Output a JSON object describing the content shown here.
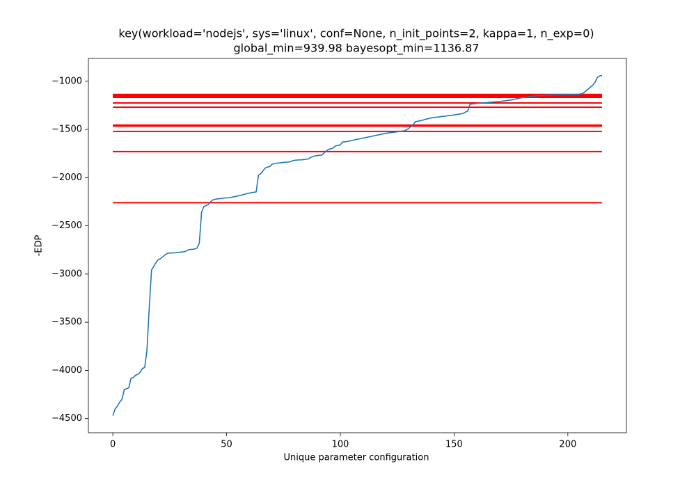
{
  "chart_data": {
    "type": "line",
    "title": "key(workload='nodejs', sys='linux', conf=None, n_init_points=2, kappa=1, n_exp=0)",
    "subtitle": "global_min=939.98 bayesopt_min=1136.87",
    "xlabel": "Unique parameter configuration",
    "ylabel": "-EDP",
    "color": "#1f77b4",
    "x": [
      0,
      1,
      2,
      3,
      4,
      5,
      6,
      7,
      8,
      9,
      10,
      11,
      12,
      13,
      14,
      15,
      16,
      17,
      18,
      19,
      20,
      21,
      22,
      23,
      24,
      25,
      26,
      27,
      28,
      29,
      30,
      31,
      32,
      33,
      34,
      35,
      36,
      37,
      38,
      39,
      40,
      41,
      42,
      43,
      44,
      45,
      46,
      47,
      48,
      49,
      50,
      51,
      52,
      53,
      54,
      55,
      56,
      57,
      58,
      59,
      60,
      61,
      62,
      63,
      64,
      65,
      66,
      67,
      68,
      69,
      70,
      71,
      72,
      73,
      74,
      75,
      76,
      77,
      78,
      79,
      80,
      81,
      82,
      83,
      84,
      85,
      86,
      87,
      88,
      89,
      90,
      91,
      92,
      93,
      94,
      95,
      96,
      97,
      98,
      99,
      100,
      101,
      102,
      103,
      104,
      105,
      106,
      107,
      108,
      109,
      110,
      111,
      112,
      113,
      114,
      115,
      116,
      117,
      118,
      119,
      120,
      121,
      122,
      123,
      124,
      125,
      126,
      127,
      128,
      129,
      130,
      131,
      132,
      133,
      134,
      135,
      136,
      137,
      138,
      139,
      140,
      141,
      142,
      143,
      144,
      145,
      146,
      147,
      148,
      149,
      150,
      151,
      152,
      153,
      154,
      155,
      156,
      157,
      158,
      159,
      160,
      161,
      162,
      163,
      164,
      165,
      166,
      167,
      168,
      169,
      170,
      171,
      172,
      173,
      174,
      175,
      176,
      177,
      178,
      179,
      180,
      181,
      182,
      183,
      184,
      185,
      186,
      187,
      188,
      189,
      190,
      191,
      192,
      193,
      194,
      195,
      196,
      197,
      198,
      199,
      200,
      201,
      202,
      203,
      204,
      205,
      206,
      207,
      208,
      209,
      210,
      211,
      212,
      213,
      214,
      215
    ],
    "values": [
      -4470,
      -4400,
      -4370,
      -4330,
      -4300,
      -4200,
      -4190,
      -4180,
      -4080,
      -4075,
      -4050,
      -4040,
      -4020,
      -3980,
      -3970,
      -3790,
      -3350,
      -2960,
      -2920,
      -2880,
      -2850,
      -2840,
      -2820,
      -2800,
      -2785,
      -2782,
      -2781,
      -2780,
      -2778,
      -2775,
      -2772,
      -2770,
      -2765,
      -2750,
      -2745,
      -2744,
      -2740,
      -2730,
      -2680,
      -2360,
      -2300,
      -2290,
      -2280,
      -2250,
      -2230,
      -2225,
      -2220,
      -2218,
      -2215,
      -2212,
      -2210,
      -2208,
      -2205,
      -2200,
      -2195,
      -2190,
      -2185,
      -2178,
      -2172,
      -2166,
      -2160,
      -2156,
      -2152,
      -2148,
      -1975,
      -1960,
      -1930,
      -1900,
      -1890,
      -1885,
      -1860,
      -1855,
      -1850,
      -1848,
      -1845,
      -1843,
      -1840,
      -1838,
      -1835,
      -1825,
      -1820,
      -1818,
      -1816,
      -1815,
      -1812,
      -1810,
      -1805,
      -1790,
      -1780,
      -1775,
      -1770,
      -1768,
      -1765,
      -1740,
      -1720,
      -1705,
      -1700,
      -1690,
      -1670,
      -1665,
      -1660,
      -1630,
      -1628,
      -1625,
      -1620,
      -1615,
      -1610,
      -1605,
      -1600,
      -1595,
      -1590,
      -1585,
      -1580,
      -1575,
      -1570,
      -1565,
      -1560,
      -1555,
      -1550,
      -1545,
      -1540,
      -1537,
      -1534,
      -1531,
      -1528,
      -1525,
      -1522,
      -1518,
      -1515,
      -1505,
      -1490,
      -1470,
      -1450,
      -1420,
      -1415,
      -1410,
      -1405,
      -1398,
      -1392,
      -1386,
      -1380,
      -1377,
      -1374,
      -1371,
      -1368,
      -1365,
      -1362,
      -1359,
      -1356,
      -1353,
      -1350,
      -1346,
      -1342,
      -1338,
      -1334,
      -1320,
      -1310,
      -1240,
      -1236,
      -1233,
      -1230,
      -1228,
      -1226,
      -1224,
      -1222,
      -1220,
      -1218,
      -1216,
      -1214,
      -1212,
      -1210,
      -1207,
      -1204,
      -1201,
      -1198,
      -1195,
      -1190,
      -1185,
      -1180,
      -1175,
      -1170,
      -1167,
      -1164,
      -1161,
      -1158,
      -1155,
      -1152,
      -1150,
      -1148,
      -1146,
      -1145,
      -1144,
      -1143,
      -1142,
      -1142,
      -1141,
      -1141,
      -1140,
      -1140,
      -1140,
      -1140,
      -1139,
      -1139,
      -1138,
      -1137,
      -1135,
      -1130,
      -1120,
      -1100,
      -1080,
      -1060,
      -1040,
      -1010,
      -960,
      -945,
      -940
    ],
    "hlines": {
      "color": "#ff0000",
      "xmin": 0,
      "xmax": 215,
      "values": [
        -1137,
        -1142,
        -1148,
        -1153,
        -1158,
        -1163,
        -1168,
        -1225,
        -1270,
        -1455,
        -1465,
        -1520,
        -1730,
        -2260
      ]
    },
    "xlim": [
      -10.75,
      225.75
    ],
    "ylim": [
      -4646.5,
      -763.5
    ],
    "xticks": [
      0,
      50,
      100,
      150,
      200
    ],
    "yticks": [
      {
        "value": -4500,
        "label": "−4500"
      },
      {
        "value": -4000,
        "label": "−4000"
      },
      {
        "value": -3500,
        "label": "−3500"
      },
      {
        "value": -3000,
        "label": "−3000"
      },
      {
        "value": -2500,
        "label": "−2500"
      },
      {
        "value": -2000,
        "label": "−2000"
      },
      {
        "value": -1500,
        "label": "−1500"
      },
      {
        "value": -1000,
        "label": "−1000"
      }
    ],
    "grid": false
  }
}
